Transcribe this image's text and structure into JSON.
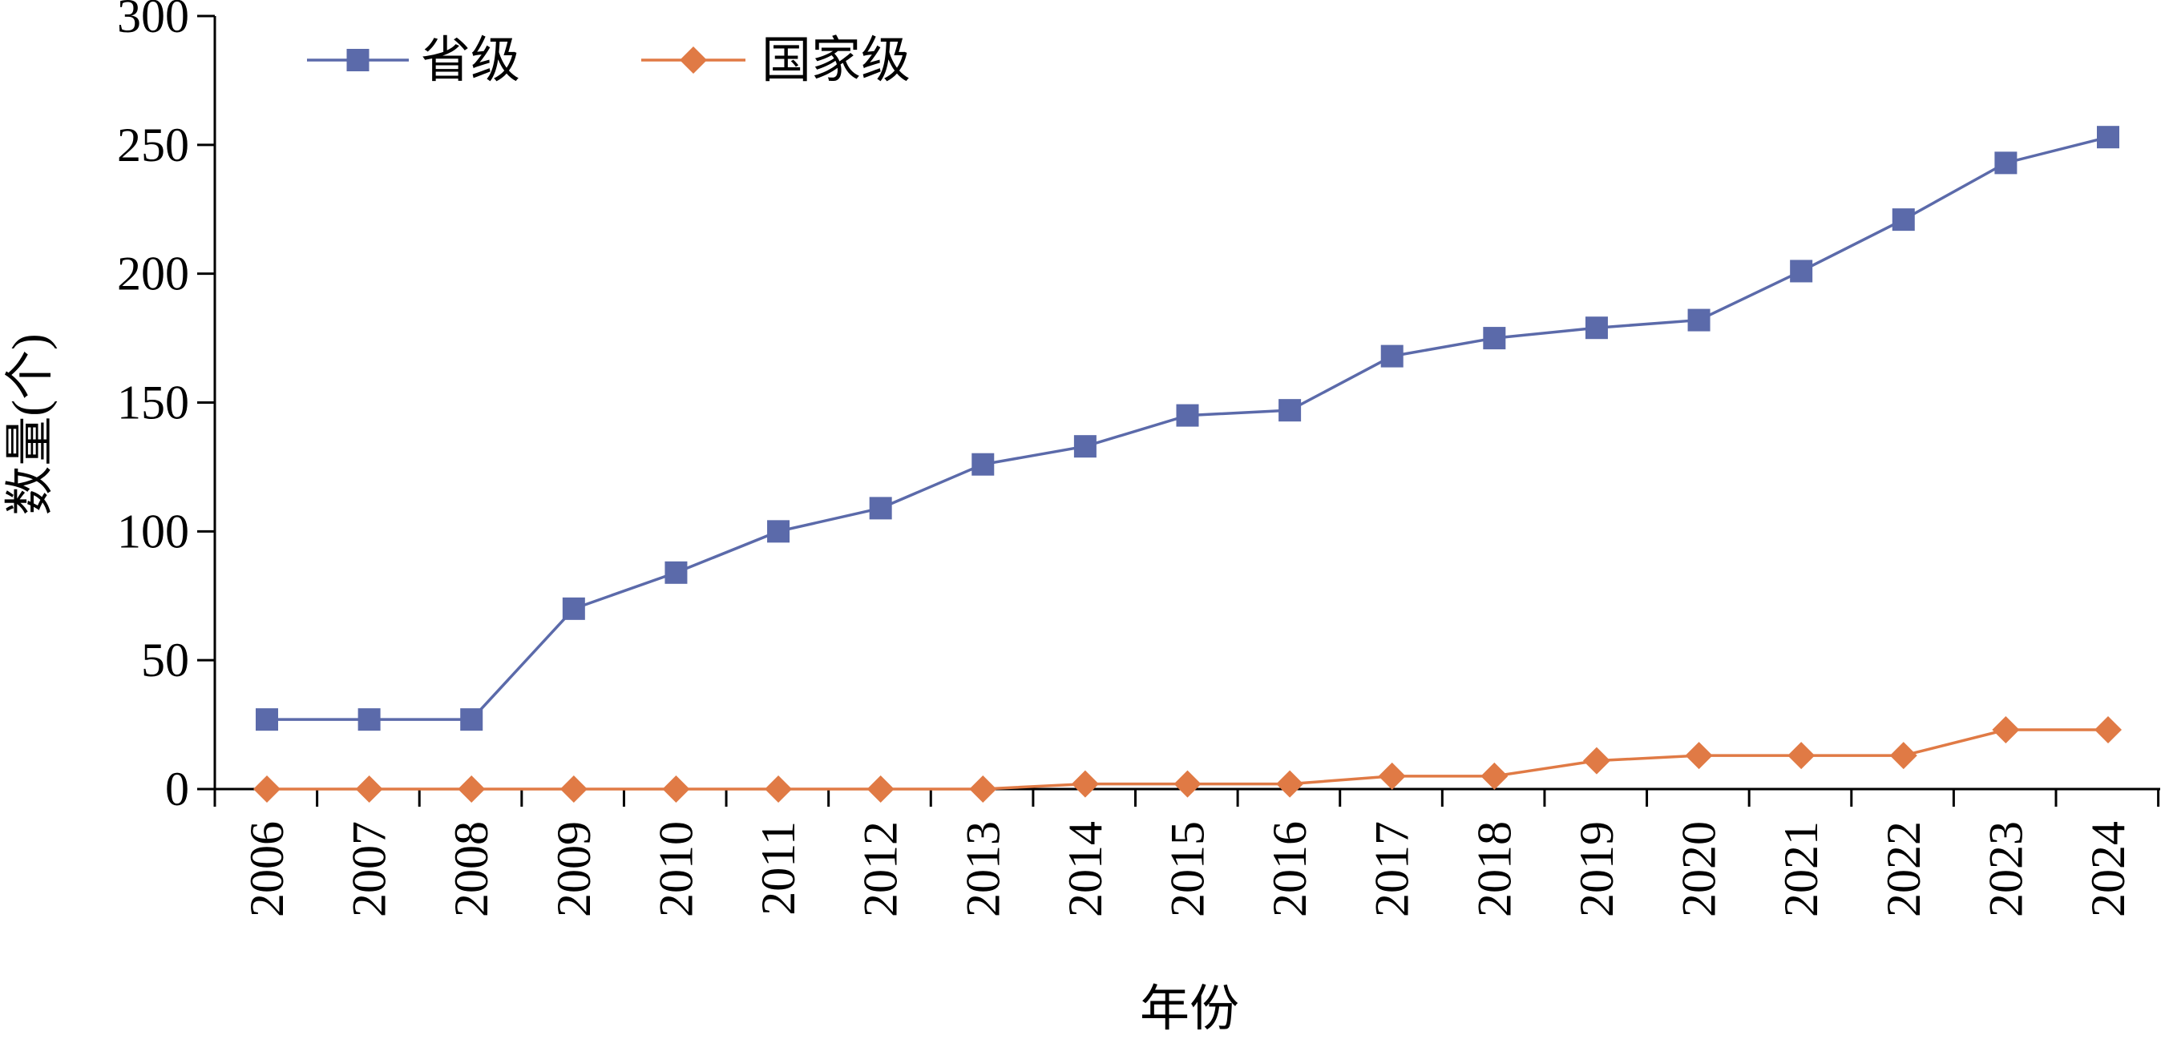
{
  "chart_data": {
    "type": "line",
    "title": "",
    "xlabel": "年份",
    "ylabel": "数量(个)",
    "ylim": [
      0,
      300
    ],
    "yticks": [
      0,
      50,
      100,
      150,
      200,
      250,
      300
    ],
    "grid": false,
    "legend_position": "top-left",
    "categories": [
      "2006",
      "2007",
      "2008",
      "2009",
      "2010",
      "2011",
      "2012",
      "2013",
      "2014",
      "2015",
      "2016",
      "2017",
      "2018",
      "2019",
      "2020",
      "2021",
      "2022",
      "2023",
      "2024"
    ],
    "series": [
      {
        "name": "省级",
        "color": "#5b6aaa",
        "marker": "square",
        "values": [
          27,
          27,
          27,
          70,
          84,
          100,
          109,
          126,
          133,
          145,
          147,
          168,
          175,
          179,
          182,
          201,
          221,
          243,
          253
        ]
      },
      {
        "name": "国家级",
        "color": "#e07a45",
        "marker": "diamond",
        "values": [
          0,
          0,
          0,
          0,
          0,
          0,
          0,
          0,
          2,
          2,
          2,
          5,
          5,
          11,
          13,
          13,
          13,
          23,
          23
        ]
      }
    ]
  }
}
